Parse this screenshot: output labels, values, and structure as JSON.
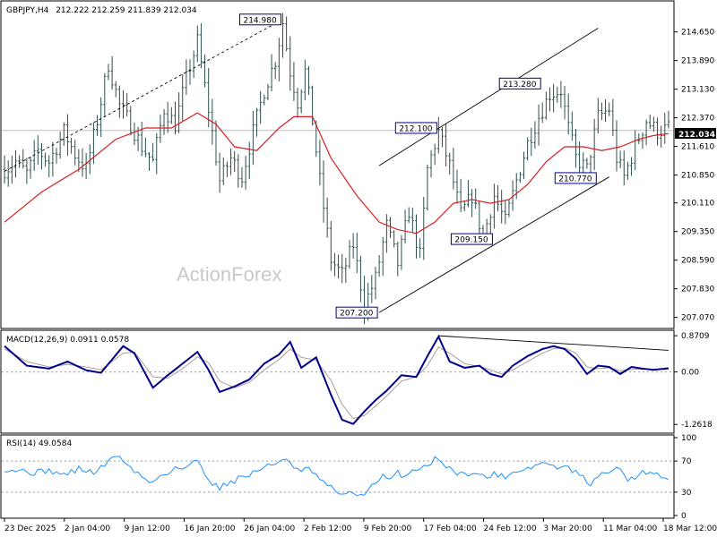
{
  "header": {
    "symbol": "GBPJPY,H4",
    "ohlc": "212.222 212.259 211.839 212.034"
  },
  "watermark": "ActionForex",
  "colors": {
    "candle": "#2f4f4f",
    "ma": "#d42020",
    "channel": "#000000",
    "macd": "#00008b",
    "signal": "#b09a9a",
    "rsi": "#1e90ff",
    "label_border": "#00008b"
  },
  "chart_data": [
    {
      "type": "candlestick",
      "title": "GBPJPY,H4",
      "ylim": [
        206.8,
        215.45
      ],
      "y_ticks": [
        "214.650",
        "213.890",
        "213.130",
        "212.370",
        "211.610",
        "210.850",
        "210.110",
        "209.350",
        "208.590",
        "207.830",
        "207.070"
      ],
      "current_price": "212.034",
      "x_ticks": [
        "23 Dec 2025",
        "2 Jan 04:00",
        "9 Jan 12:00",
        "16 Jan 20:00",
        "26 Jan 04:00",
        "2 Feb 12:00",
        "9 Feb 20:00",
        "17 Feb 04:00",
        "24 Feb 12:00",
        "3 Mar 20:00",
        "11 Mar 04:00",
        "18 Mar 12:00"
      ],
      "price_path": [
        [
          0,
          211.0
        ],
        [
          3,
          211.2
        ],
        [
          6,
          210.9
        ],
        [
          9,
          211.5
        ],
        [
          12,
          211.2
        ],
        [
          16,
          212.0
        ],
        [
          19,
          211.4
        ],
        [
          22,
          211.0
        ],
        [
          25,
          212.3
        ],
        [
          28,
          213.8
        ],
        [
          31,
          212.7
        ],
        [
          34,
          212.2
        ],
        [
          37,
          211.6
        ],
        [
          40,
          211.2
        ],
        [
          43,
          212.6
        ],
        [
          46,
          212.2
        ],
        [
          49,
          213.4
        ],
        [
          52,
          214.4
        ],
        [
          55,
          212.6
        ],
        [
          58,
          210.7
        ],
        [
          61,
          211.3
        ],
        [
          64,
          210.8
        ],
        [
          67,
          212.0
        ],
        [
          70,
          213.1
        ],
        [
          73,
          213.9
        ],
        [
          75,
          214.9
        ],
        [
          77,
          213.6
        ],
        [
          79,
          212.8
        ],
        [
          81,
          213.6
        ],
        [
          83,
          212.3
        ],
        [
          85,
          210.7
        ],
        [
          88,
          208.6
        ],
        [
          91,
          208.2
        ],
        [
          94,
          209.0
        ],
        [
          97,
          207.4
        ],
        [
          100,
          208.1
        ],
        [
          103,
          209.5
        ],
        [
          106,
          208.5
        ],
        [
          109,
          209.9
        ],
        [
          112,
          208.7
        ],
        [
          114,
          211.0
        ],
        [
          117,
          212.0
        ],
        [
          120,
          211.1
        ],
        [
          123,
          209.8
        ],
        [
          126,
          210.3
        ],
        [
          129,
          209.2
        ],
        [
          132,
          210.3
        ],
        [
          135,
          209.6
        ],
        [
          138,
          210.7
        ],
        [
          141,
          211.7
        ],
        [
          144,
          212.4
        ],
        [
          147,
          213.0
        ],
        [
          150,
          213.1
        ],
        [
          152,
          212.1
        ],
        [
          154,
          211.3
        ],
        [
          157,
          211.0
        ],
        [
          160,
          212.4
        ],
        [
          163,
          212.6
        ],
        [
          165,
          211.3
        ],
        [
          167,
          210.8
        ],
        [
          170,
          211.6
        ],
        [
          173,
          212.3
        ],
        [
          176,
          212.0
        ],
        [
          179,
          212.1
        ]
      ],
      "moving_average": [
        [
          0,
          209.6
        ],
        [
          10,
          210.4
        ],
        [
          20,
          211.0
        ],
        [
          30,
          211.8
        ],
        [
          38,
          212.1
        ],
        [
          45,
          212.1
        ],
        [
          52,
          212.5
        ],
        [
          57,
          212.2
        ],
        [
          62,
          211.6
        ],
        [
          68,
          211.5
        ],
        [
          74,
          212.1
        ],
        [
          78,
          212.4
        ],
        [
          83,
          212.4
        ],
        [
          88,
          211.3
        ],
        [
          95,
          210.3
        ],
        [
          101,
          209.6
        ],
        [
          106,
          209.4
        ],
        [
          111,
          209.3
        ],
        [
          116,
          209.6
        ],
        [
          121,
          210.1
        ],
        [
          126,
          210.2
        ],
        [
          131,
          210.1
        ],
        [
          136,
          210.2
        ],
        [
          141,
          210.6
        ],
        [
          146,
          211.2
        ],
        [
          151,
          211.6
        ],
        [
          156,
          211.6
        ],
        [
          161,
          211.5
        ],
        [
          166,
          211.6
        ],
        [
          171,
          211.8
        ],
        [
          175,
          211.9
        ],
        [
          179,
          211.95
        ]
      ],
      "trendlines": [
        {
          "style": "dashed",
          "from": [
            0,
            210.95
          ],
          "to": [
            75,
            214.98
          ]
        },
        {
          "style": "solid",
          "from": [
            101,
            207.2
          ],
          "to": [
            163,
            210.8
          ]
        },
        {
          "style": "solid",
          "from": [
            101,
            211.1
          ],
          "to": [
            160,
            214.75
          ]
        }
      ],
      "annotations": [
        {
          "text": "214.980",
          "x": 75,
          "y": 214.98,
          "side": "left"
        },
        {
          "text": "207.200",
          "x": 101,
          "y": 207.2,
          "side": "left"
        },
        {
          "text": "212.100",
          "x": 117,
          "y": 212.1,
          "side": "left"
        },
        {
          "text": "209.150",
          "x": 132,
          "y": 209.15,
          "side": "left"
        },
        {
          "text": "213.280",
          "x": 145,
          "y": 213.28,
          "side": "left"
        },
        {
          "text": "210.770",
          "x": 160,
          "y": 210.77,
          "side": "left"
        }
      ]
    },
    {
      "type": "line",
      "title": "MACD(12,26,9) 0.0911 0.0578",
      "ylim": [
        -1.45,
        0.98
      ],
      "y_ticks": [
        "0.8709",
        "0.00",
        "-1.2618"
      ],
      "macd": [
        [
          0,
          0.62
        ],
        [
          6,
          0.15
        ],
        [
          12,
          0.08
        ],
        [
          17,
          0.25
        ],
        [
          22,
          0.04
        ],
        [
          26,
          -0.02
        ],
        [
          32,
          0.62
        ],
        [
          35,
          0.45
        ],
        [
          40,
          -0.38
        ],
        [
          44,
          -0.08
        ],
        [
          48,
          0.2
        ],
        [
          52,
          0.48
        ],
        [
          55,
          0.05
        ],
        [
          58,
          -0.48
        ],
        [
          62,
          -0.35
        ],
        [
          66,
          -0.18
        ],
        [
          70,
          0.2
        ],
        [
          74,
          0.42
        ],
        [
          77,
          0.72
        ],
        [
          80,
          0.1
        ],
        [
          84,
          0.35
        ],
        [
          88,
          -0.55
        ],
        [
          91,
          -1.15
        ],
        [
          94,
          -1.25
        ],
        [
          97,
          -0.95
        ],
        [
          100,
          -0.68
        ],
        [
          103,
          -0.45
        ],
        [
          107,
          -0.08
        ],
        [
          111,
          -0.12
        ],
        [
          114,
          0.38
        ],
        [
          117,
          0.85
        ],
        [
          120,
          0.25
        ],
        [
          124,
          0.1
        ],
        [
          128,
          0.15
        ],
        [
          131,
          -0.05
        ],
        [
          134,
          -0.12
        ],
        [
          137,
          0.15
        ],
        [
          141,
          0.38
        ],
        [
          145,
          0.55
        ],
        [
          148,
          0.62
        ],
        [
          151,
          0.55
        ],
        [
          154,
          0.32
        ],
        [
          157,
          -0.05
        ],
        [
          160,
          0.15
        ],
        [
          163,
          0.12
        ],
        [
          166,
          -0.05
        ],
        [
          169,
          0.12
        ],
        [
          172,
          0.08
        ],
        [
          175,
          0.05
        ],
        [
          179,
          0.09
        ]
      ],
      "signal": [
        [
          0,
          0.55
        ],
        [
          6,
          0.25
        ],
        [
          12,
          0.12
        ],
        [
          17,
          0.18
        ],
        [
          22,
          0.12
        ],
        [
          26,
          0.05
        ],
        [
          32,
          0.45
        ],
        [
          35,
          0.48
        ],
        [
          40,
          -0.12
        ],
        [
          44,
          -0.15
        ],
        [
          48,
          0.08
        ],
        [
          52,
          0.36
        ],
        [
          55,
          0.22
        ],
        [
          58,
          -0.22
        ],
        [
          62,
          -0.38
        ],
        [
          66,
          -0.25
        ],
        [
          70,
          0.05
        ],
        [
          74,
          0.3
        ],
        [
          77,
          0.55
        ],
        [
          80,
          0.35
        ],
        [
          84,
          0.28
        ],
        [
          88,
          -0.2
        ],
        [
          91,
          -0.78
        ],
        [
          94,
          -1.12
        ],
        [
          97,
          -1.05
        ],
        [
          100,
          -0.82
        ],
        [
          103,
          -0.58
        ],
        [
          107,
          -0.22
        ],
        [
          111,
          -0.12
        ],
        [
          114,
          0.15
        ],
        [
          117,
          0.6
        ],
        [
          120,
          0.45
        ],
        [
          124,
          0.2
        ],
        [
          128,
          0.13
        ],
        [
          131,
          0.05
        ],
        [
          134,
          -0.05
        ],
        [
          137,
          0.05
        ],
        [
          141,
          0.25
        ],
        [
          145,
          0.45
        ],
        [
          148,
          0.56
        ],
        [
          151,
          0.58
        ],
        [
          154,
          0.45
        ],
        [
          157,
          0.12
        ],
        [
          160,
          0.08
        ],
        [
          163,
          0.1
        ],
        [
          166,
          0.03
        ],
        [
          169,
          0.06
        ],
        [
          172,
          0.07
        ],
        [
          175,
          0.06
        ],
        [
          179,
          0.06
        ]
      ],
      "trendline": {
        "from": [
          117,
          0.87
        ],
        "to": [
          179,
          0.52
        ]
      }
    },
    {
      "type": "line",
      "title": "RSI(14) 49.0584",
      "ylim": [
        0,
        100
      ],
      "y_ticks": [
        "100",
        "70",
        "30",
        "0"
      ],
      "levels": [
        70,
        30
      ],
      "rsi": [
        [
          0,
          60
        ],
        [
          4,
          58
        ],
        [
          8,
          55
        ],
        [
          12,
          58
        ],
        [
          16,
          52
        ],
        [
          20,
          60
        ],
        [
          24,
          55
        ],
        [
          28,
          68
        ],
        [
          30,
          78
        ],
        [
          32,
          72
        ],
        [
          34,
          60
        ],
        [
          36,
          55
        ],
        [
          38,
          45
        ],
        [
          40,
          42
        ],
        [
          42,
          52
        ],
        [
          44,
          55
        ],
        [
          46,
          62
        ],
        [
          48,
          60
        ],
        [
          50,
          64
        ],
        [
          52,
          72
        ],
        [
          54,
          55
        ],
        [
          56,
          42
        ],
        [
          58,
          35
        ],
        [
          60,
          42
        ],
        [
          62,
          45
        ],
        [
          64,
          50
        ],
        [
          66,
          52
        ],
        [
          68,
          58
        ],
        [
          70,
          62
        ],
        [
          72,
          64
        ],
        [
          74,
          70
        ],
        [
          76,
          75
        ],
        [
          78,
          60
        ],
        [
          80,
          55
        ],
        [
          82,
          62
        ],
        [
          84,
          50
        ],
        [
          86,
          42
        ],
        [
          88,
          35
        ],
        [
          90,
          30
        ],
        [
          92,
          25
        ],
        [
          94,
          30
        ],
        [
          96,
          25
        ],
        [
          98,
          34
        ],
        [
          100,
          40
        ],
        [
          102,
          50
        ],
        [
          104,
          45
        ],
        [
          106,
          55
        ],
        [
          108,
          50
        ],
        [
          110,
          58
        ],
        [
          112,
          62
        ],
        [
          114,
          65
        ],
        [
          116,
          72
        ],
        [
          118,
          70
        ],
        [
          120,
          60
        ],
        [
          122,
          55
        ],
        [
          124,
          52
        ],
        [
          126,
          57
        ],
        [
          128,
          52
        ],
        [
          130,
          48
        ],
        [
          132,
          55
        ],
        [
          134,
          50
        ],
        [
          136,
          52
        ],
        [
          138,
          58
        ],
        [
          140,
          60
        ],
        [
          142,
          62
        ],
        [
          144,
          66
        ],
        [
          146,
          68
        ],
        [
          148,
          62
        ],
        [
          150,
          63
        ],
        [
          152,
          60
        ],
        [
          154,
          55
        ],
        [
          156,
          48
        ],
        [
          158,
          40
        ],
        [
          160,
          48
        ],
        [
          162,
          58
        ],
        [
          164,
          55
        ],
        [
          166,
          62
        ],
        [
          168,
          45
        ],
        [
          170,
          50
        ],
        [
          172,
          55
        ],
        [
          174,
          58
        ],
        [
          176,
          52
        ],
        [
          179,
          49
        ]
      ]
    }
  ]
}
